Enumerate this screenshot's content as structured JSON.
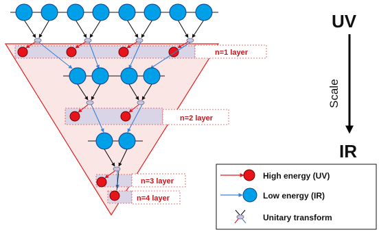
{
  "layers": [
    {
      "label": "n=1 layer"
    },
    {
      "label": "n=2 layer"
    },
    {
      "label": "n=3 layer"
    },
    {
      "label": "n=4 layer"
    }
  ],
  "scale_axis": {
    "top": "UV",
    "middle": "Scale",
    "bottom": "IR"
  },
  "legend": {
    "high_energy": "High energy (UV)",
    "low_energy": "Low energy (IR)",
    "unitary": "Unitary transform"
  },
  "colors": {
    "triangle_stroke": "#e02020",
    "triangle_fill": "#fbe6e6",
    "band_fill": "#d9d4e6",
    "band_border": "#e05050",
    "ir_node": "#00a0e8",
    "uv_node": "#e8141b",
    "blue_arrow": "#3d7fd0",
    "red_arrow": "#e8141b",
    "label_red": "#c8141b"
  }
}
